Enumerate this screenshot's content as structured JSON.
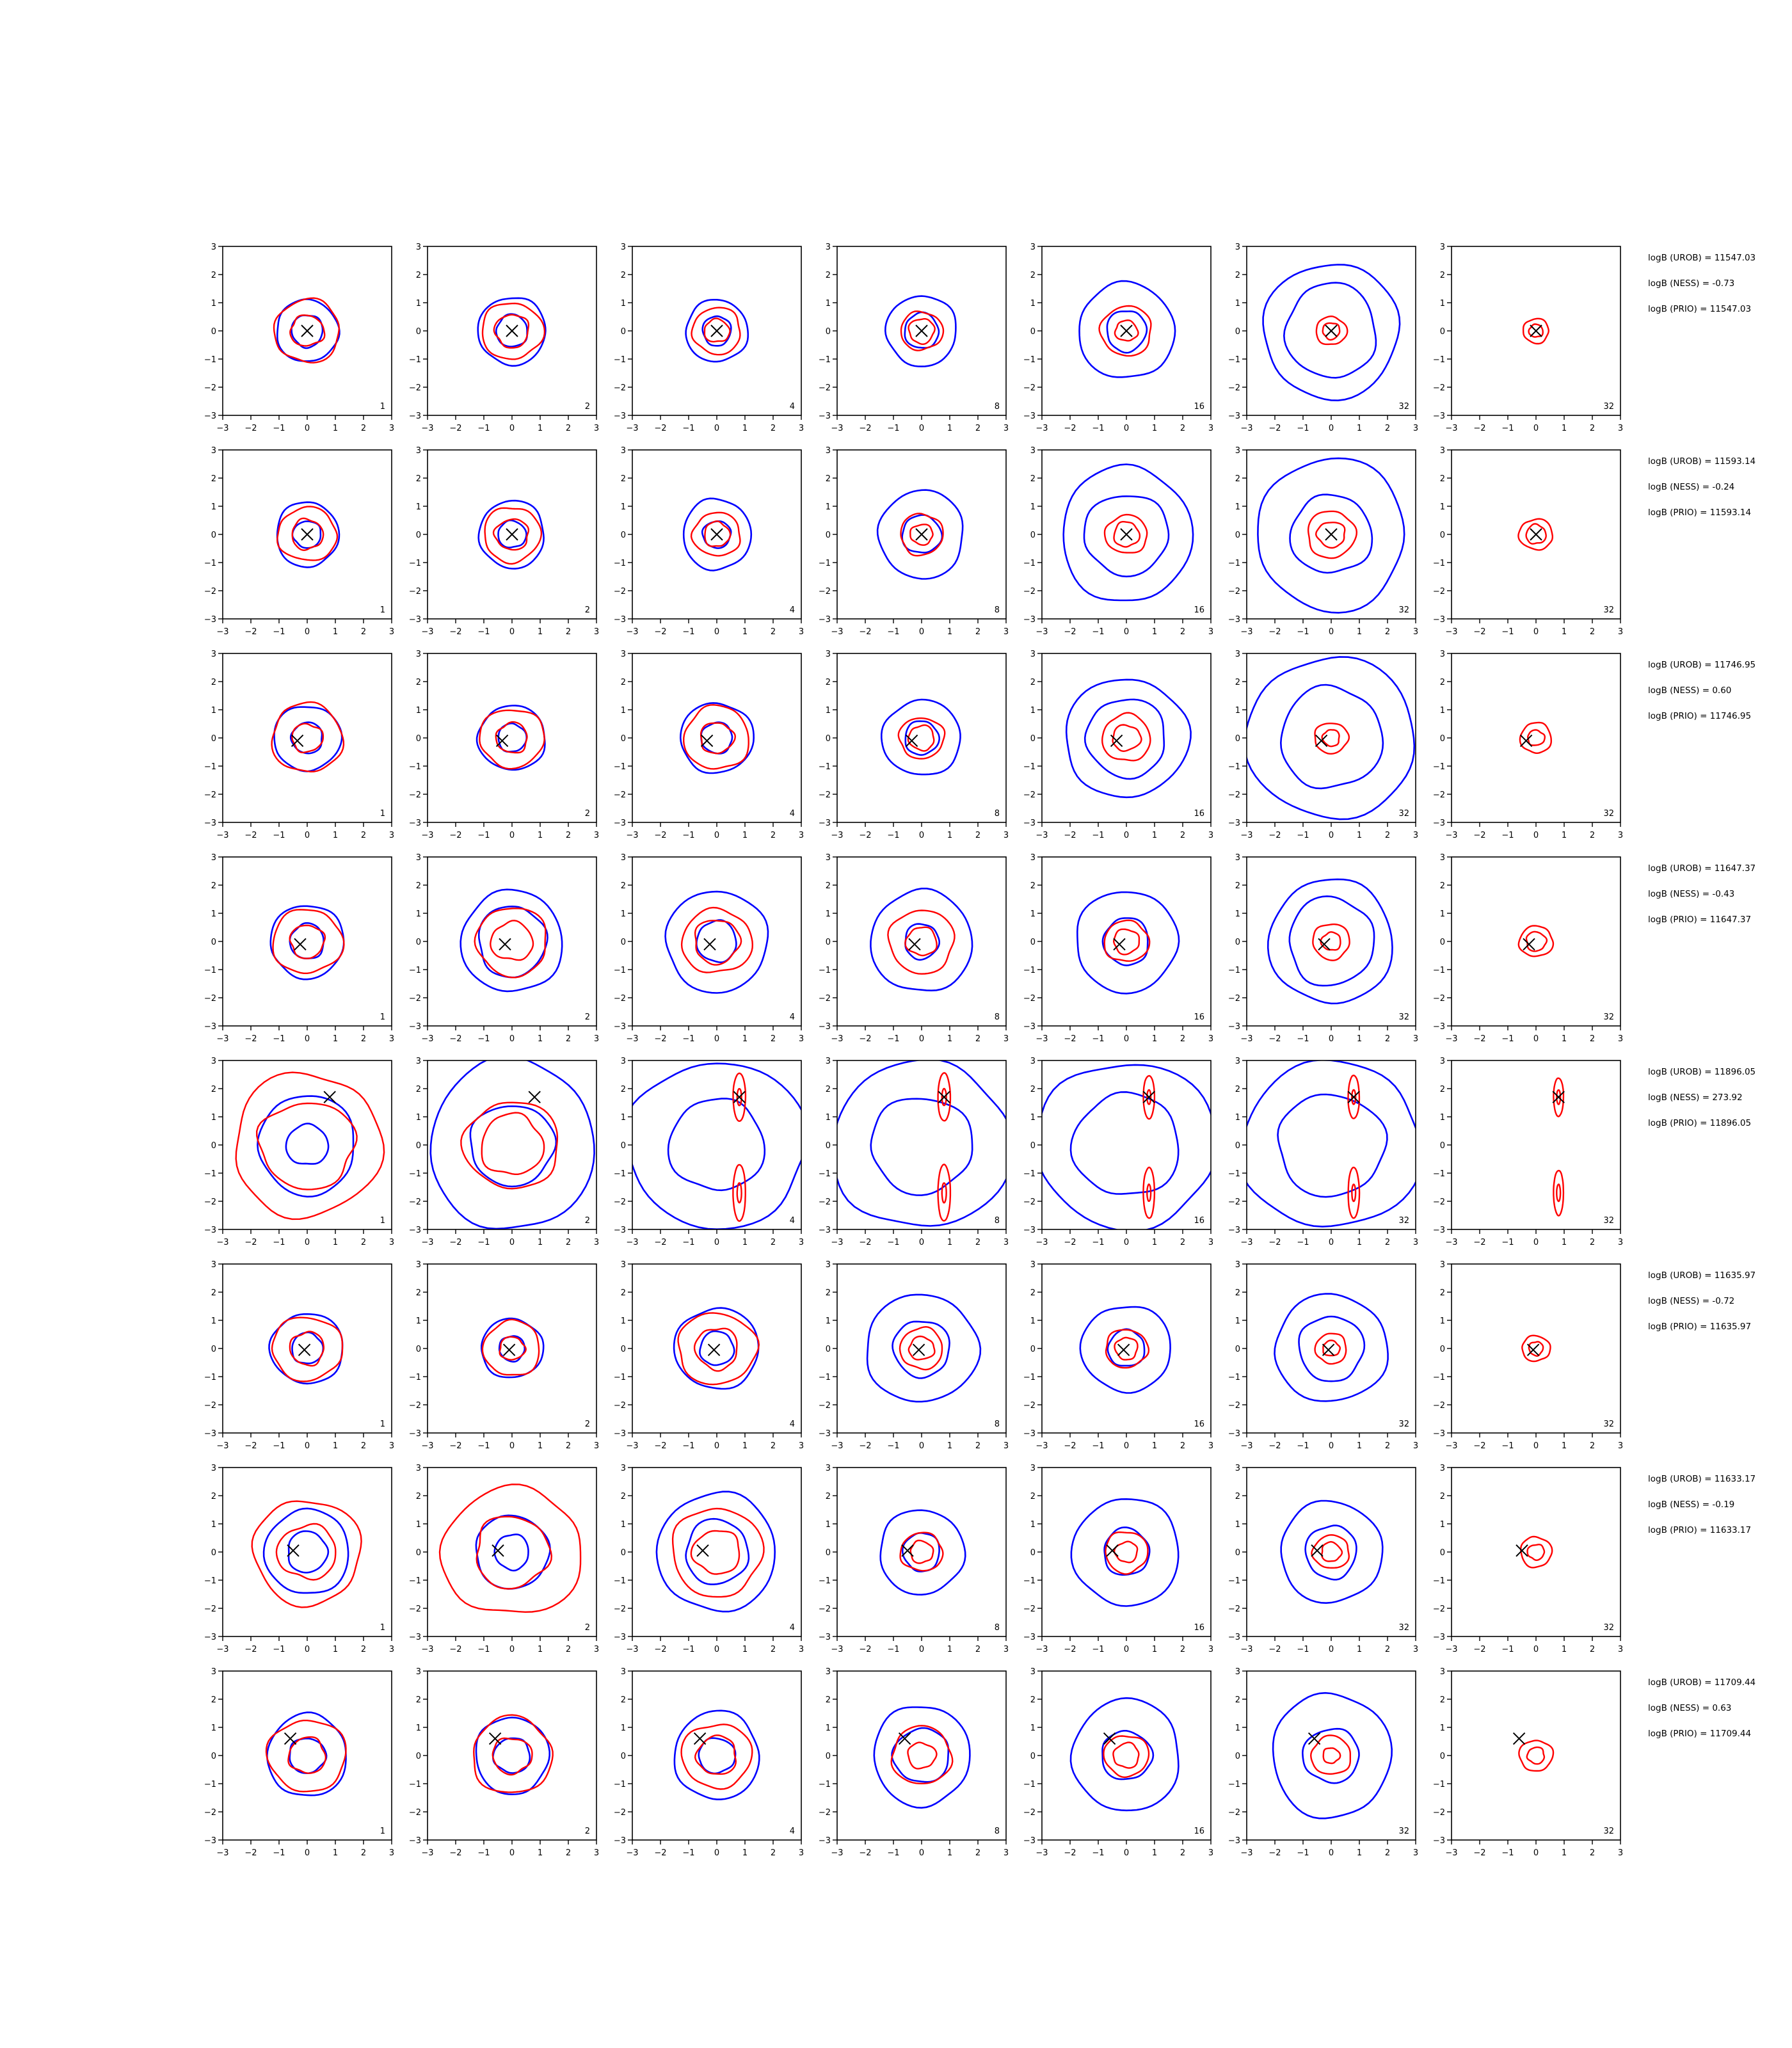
{
  "chart_data": {
    "type": "contour-grid",
    "xlim": [
      -3,
      3
    ],
    "ylim": [
      -3,
      3
    ],
    "ticks": [
      -3,
      -2,
      -1,
      0,
      1,
      2,
      3
    ],
    "grid": false,
    "colors": {
      "blue_contours": "#0000ff",
      "red_contours": "#ff0000",
      "marker": "#000000"
    },
    "column_labels": [
      "1",
      "2",
      "4",
      "8",
      "16",
      "32",
      "32"
    ],
    "rows": [
      {
        "marker": [
          0.0,
          0.0
        ],
        "stats": [
          "logB (UROB) = 11547.03",
          "logB (NESS) = -0.73",
          "logB (PRIO) = 11547.03"
        ],
        "panels": [
          {
            "blue": [
              1.1,
              0.55
            ],
            "red": [
              1.15,
              0.6
            ]
          },
          {
            "blue": [
              1.2,
              0.55
            ],
            "red": [
              1.1,
              0.6
            ]
          },
          {
            "blue": [
              1.1,
              0.5
            ],
            "red": [
              0.85,
              0.45
            ]
          },
          {
            "blue": [
              1.25,
              0.6
            ],
            "red": [
              0.75,
              0.45
            ]
          },
          {
            "blue": [
              1.7,
              0.7
            ],
            "red": [
              0.9,
              0.4
            ]
          },
          {
            "blue": [
              2.4,
              1.6
            ],
            "red": [
              0.55,
              0.3
            ]
          },
          {
            "blue": [],
            "red": [
              0.45,
              0.25
            ]
          }
        ]
      },
      {
        "marker": [
          0.0,
          0.0
        ],
        "stats": [
          "logB (UROB) = 11593.14",
          "logB (NESS) = -0.24",
          "logB (PRIO) = 11593.14"
        ],
        "panels": [
          {
            "blue": [
              1.1,
              0.5
            ],
            "red": [
              1.05,
              0.55
            ]
          },
          {
            "blue": [
              1.15,
              0.5
            ],
            "red": [
              1.0,
              0.6
            ]
          },
          {
            "blue": [
              1.2,
              0.5
            ],
            "red": [
              0.85,
              0.45
            ]
          },
          {
            "blue": [
              1.5,
              0.7
            ],
            "red": [
              0.75,
              0.4
            ]
          },
          {
            "blue": [
              2.3,
              1.5
            ],
            "red": [
              0.75,
              0.45
            ]
          },
          {
            "blue": [
              2.6,
              1.45
            ],
            "red": [
              0.85,
              0.5
            ]
          },
          {
            "blue": [],
            "red": [
              0.6,
              0.35
            ]
          }
        ]
      },
      {
        "marker": [
          -0.35,
          -0.1
        ],
        "stats": [
          "logB (UROB) = 11746.95",
          "logB (NESS) = 0.60",
          "logB (PRIO) = 11746.95"
        ],
        "panels": [
          {
            "blue": [
              1.2,
              0.55
            ],
            "red": [
              1.25,
              0.55
            ]
          },
          {
            "blue": [
              1.2,
              0.5
            ],
            "red": [
              1.15,
              0.55
            ]
          },
          {
            "blue": [
              1.3,
              0.55
            ],
            "red": [
              1.15,
              0.6
            ]
          },
          {
            "blue": [
              1.4,
              0.6
            ],
            "red": [
              0.8,
              0.45
            ]
          },
          {
            "blue": [
              2.2,
              1.4
            ],
            "red": [
              0.85,
              0.5
            ]
          },
          {
            "blue": [
              3.0,
              1.8
            ],
            "red": [
              0.6,
              0.3
            ]
          },
          {
            "blue": [],
            "red": [
              0.55,
              0.3
            ]
          }
        ]
      },
      {
        "marker": [
          -0.25,
          -0.1
        ],
        "stats": [
          "logB (UROB) = 11647.37",
          "logB (NESS) = -0.43",
          "logB (PRIO) = 11647.37"
        ],
        "panels": [
          {
            "blue": [
              1.3,
              0.6
            ],
            "red": [
              1.25,
              0.6
            ]
          },
          {
            "blue": [
              1.8,
              1.2
            ],
            "red": [
              1.25,
              0.75
            ]
          },
          {
            "blue": [
              1.8,
              0.7
            ],
            "red": [
              1.25,
              0.8
            ]
          },
          {
            "blue": [
              1.8,
              0.6
            ],
            "red": [
              1.15,
              0.55
            ]
          },
          {
            "blue": [
              1.8,
              0.8
            ],
            "red": [
              0.8,
              0.45
            ]
          },
          {
            "blue": [
              2.2,
              1.5
            ],
            "red": [
              0.65,
              0.35
            ]
          },
          {
            "blue": [],
            "red": [
              0.6,
              0.35
            ]
          }
        ]
      },
      {
        "marker": [
          0.8,
          1.7
        ],
        "stats": [
          "logB (UROB) = 11896.05",
          "logB (NESS) = 273.92",
          "logB (PRIO) = 11896.05"
        ],
        "panels": [
          {
            "blue": [
              1.7,
              0.75
            ],
            "red": [
              2.6,
              1.7
            ]
          },
          {
            "blue": [
              2.9,
              1.5
            ],
            "red": [
              1.7,
              1.1
            ]
          },
          {
            "blue": [
              3.2,
              1.7
            ],
            "red": [
              1.0,
              0.35
            ]
          },
          {
            "blue": [
              3.2,
              1.8
            ],
            "red": [
              1.0,
              0.35
            ]
          },
          {
            "blue": [
              3.2,
              1.9
            ],
            "red": [
              0.9,
              0.3
            ]
          },
          {
            "blue": [
              3.2,
              1.9
            ],
            "red": [
              0.9,
              0.3
            ]
          },
          {
            "blue": [],
            "red": [
              0.8,
              0.3
            ]
          }
        ]
      },
      {
        "marker": [
          -0.1,
          -0.05
        ],
        "stats": [
          "logB (UROB) = 11635.97",
          "logB (NESS) = -0.72",
          "logB (PRIO) = 11635.97"
        ],
        "panels": [
          {
            "blue": [
              1.3,
              0.55
            ],
            "red": [
              1.25,
              0.6
            ]
          },
          {
            "blue": [
              1.1,
              0.45
            ],
            "red": [
              1.0,
              0.45
            ]
          },
          {
            "blue": [
              1.5,
              0.6
            ],
            "red": [
              1.4,
              0.75
            ]
          },
          {
            "blue": [
              2.0,
              1.0
            ],
            "red": [
              0.75,
              0.45
            ]
          },
          {
            "blue": [
              1.6,
              0.65
            ],
            "red": [
              0.75,
              0.4
            ]
          },
          {
            "blue": [
              2.0,
              1.15
            ],
            "red": [
              0.55,
              0.3
            ]
          },
          {
            "blue": [],
            "red": [
              0.5,
              0.25
            ]
          }
        ]
      },
      {
        "marker": [
          -0.5,
          0.05
        ],
        "stats": [
          "logB (UROB) = 11633.17",
          "logB (NESS) = -0.19",
          "logB (PRIO) = 11633.17"
        ],
        "panels": [
          {
            "blue": [
              1.5,
              0.7
            ],
            "red": [
              1.9,
              1.05
            ]
          },
          {
            "blue": [
              1.3,
              0.6
            ],
            "red": [
              2.5,
              1.3
            ]
          },
          {
            "blue": [
              2.1,
              1.1
            ],
            "red": [
              1.6,
              0.85
            ]
          },
          {
            "blue": [
              1.5,
              0.65
            ],
            "red": [
              0.75,
              0.4
            ]
          },
          {
            "blue": [
              1.9,
              0.8
            ],
            "red": [
              0.75,
              0.4
            ]
          },
          {
            "blue": [
              1.8,
              0.9
            ],
            "red": [
              0.65,
              0.35
            ]
          },
          {
            "blue": [],
            "red": [
              0.55,
              0.3
            ]
          }
        ]
      },
      {
        "marker": [
          -0.6,
          0.6
        ],
        "stats": [
          "logB (UROB) = 11709.44",
          "logB (NESS) = 0.63",
          "logB (PRIO) = 11709.44"
        ],
        "panels": [
          {
            "blue": [
              1.4,
              0.65
            ],
            "red": [
              1.4,
              0.65
            ]
          },
          {
            "blue": [
              1.3,
              0.65
            ],
            "red": [
              1.4,
              0.7
            ]
          },
          {
            "blue": [
              1.5,
              0.65
            ],
            "red": [
              1.25,
              0.7
            ]
          },
          {
            "blue": [
              1.7,
              1.0
            ],
            "red": [
              1.05,
              0.5
            ]
          },
          {
            "blue": [
              1.9,
              0.9
            ],
            "red": [
              0.8,
              0.45
            ]
          },
          {
            "blue": [
              2.1,
              1.0
            ],
            "red": [
              0.7,
              0.3
            ]
          },
          {
            "blue": [],
            "red": [
              0.6,
              0.3
            ]
          }
        ]
      }
    ]
  }
}
